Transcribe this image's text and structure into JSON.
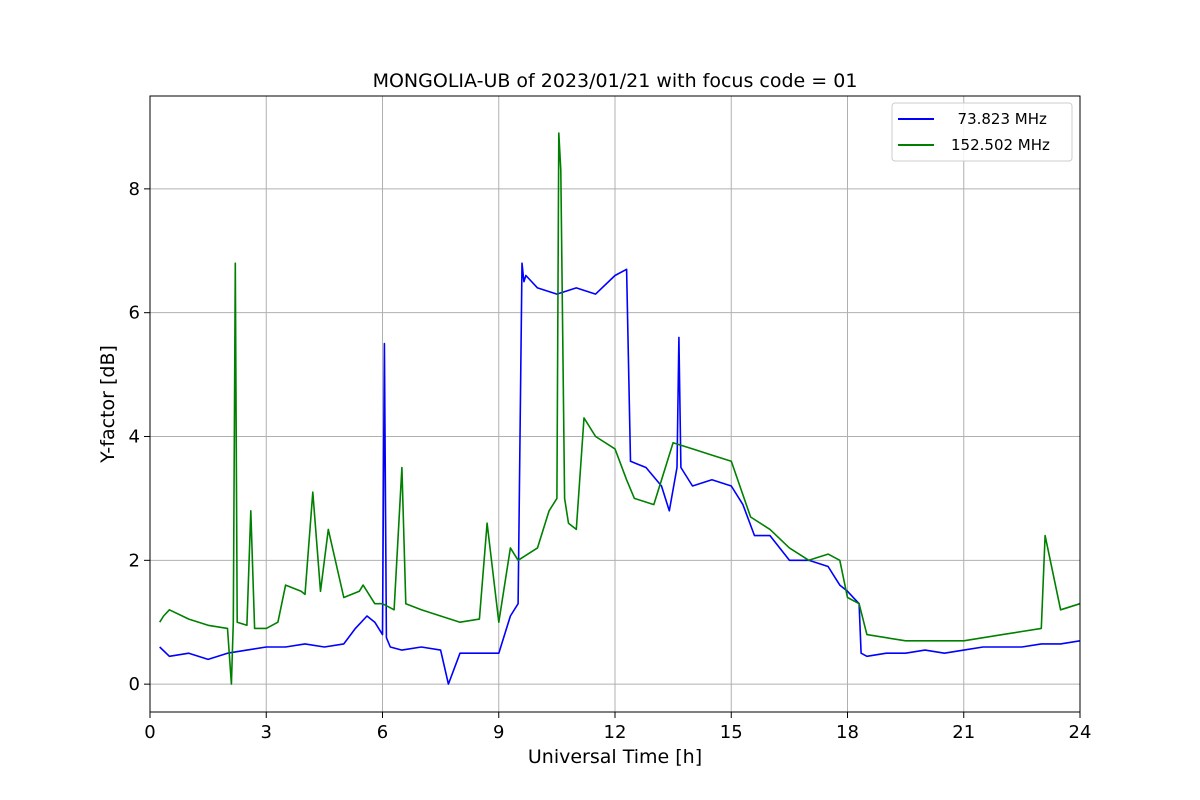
{
  "chart_data": {
    "type": "line",
    "title": "MONGOLIA-UB of 2023/01/21 with focus code = 01",
    "xlabel": "Universal Time [h]",
    "ylabel": "Y-factor [dB]",
    "xlim": [
      0,
      24
    ],
    "ylim": [
      -0.45,
      9.5
    ],
    "xticks": [
      0,
      3,
      6,
      9,
      12,
      15,
      18,
      21,
      24
    ],
    "xtick_labels": [
      "0",
      "3",
      "6",
      "9",
      "12",
      "15",
      "18",
      "21",
      "24"
    ],
    "yticks": [
      0,
      2,
      4,
      6,
      8
    ],
    "ytick_labels": [
      "0",
      "2",
      "4",
      "6",
      "8"
    ],
    "grid": true,
    "legend_position": "top-right",
    "series": [
      {
        "name": "  73.823 MHz",
        "color": "#0000ff",
        "x": [
          0.25,
          0.5,
          1,
          1.5,
          2,
          2.5,
          3,
          3.5,
          4,
          4.5,
          5,
          5.3,
          5.6,
          5.8,
          6.0,
          6.05,
          6.1,
          6.2,
          6.5,
          7,
          7.5,
          7.7,
          8,
          8.5,
          9,
          9.3,
          9.5,
          9.6,
          9.65,
          9.7,
          10,
          10.5,
          11,
          11.5,
          12,
          12.3,
          12.4,
          12.8,
          13.2,
          13.4,
          13.6,
          13.65,
          13.7,
          14,
          14.5,
          15,
          15.3,
          15.6,
          16,
          16.5,
          17,
          17.5,
          17.7,
          17.8,
          18,
          18.3,
          18.35,
          18.5,
          19,
          19.5,
          20,
          20.5,
          21,
          21.5,
          22,
          22.5,
          23,
          23.5,
          24
        ],
        "y": [
          0.6,
          0.45,
          0.5,
          0.4,
          0.5,
          0.55,
          0.6,
          0.6,
          0.65,
          0.6,
          0.65,
          0.9,
          1.1,
          1.0,
          0.8,
          5.5,
          0.75,
          0.6,
          0.55,
          0.6,
          0.55,
          0.0,
          0.5,
          0.5,
          0.5,
          1.1,
          1.3,
          6.8,
          6.5,
          6.6,
          6.4,
          6.3,
          6.4,
          6.3,
          6.6,
          6.7,
          3.6,
          3.5,
          3.2,
          2.8,
          3.5,
          5.6,
          3.5,
          3.2,
          3.3,
          3.2,
          2.9,
          2.4,
          2.4,
          2.0,
          2.0,
          1.9,
          1.7,
          1.6,
          1.5,
          1.3,
          0.5,
          0.45,
          0.5,
          0.5,
          0.55,
          0.5,
          0.55,
          0.6,
          0.6,
          0.6,
          0.65,
          0.65,
          0.7
        ]
      },
      {
        "name": "152.502 MHz",
        "color": "#008000",
        "x": [
          0.25,
          0.35,
          0.5,
          1,
          1.5,
          2,
          2.1,
          2.15,
          2.2,
          2.25,
          2.5,
          2.6,
          2.7,
          3,
          3.3,
          3.5,
          3.9,
          4,
          4.2,
          4.4,
          4.6,
          5,
          5.4,
          5.5,
          5.8,
          6,
          6.3,
          6.5,
          6.6,
          7,
          7.5,
          8,
          8.5,
          8.7,
          9,
          9.3,
          9.5,
          10,
          10.3,
          10.5,
          10.55,
          10.6,
          10.7,
          10.8,
          11,
          11.2,
          11.5,
          12,
          12.3,
          12.5,
          13,
          13.3,
          13.5,
          14,
          14.5,
          15,
          15.5,
          16,
          16.5,
          17,
          17.5,
          17.8,
          18,
          18.3,
          18.5,
          19,
          19.5,
          20,
          20.5,
          21,
          21.5,
          22,
          22.5,
          23,
          23.1,
          23.5,
          24
        ],
        "y": [
          1.0,
          1.1,
          1.2,
          1.05,
          0.95,
          0.9,
          0.0,
          1.0,
          6.8,
          1.0,
          0.95,
          2.8,
          0.9,
          0.9,
          1.0,
          1.6,
          1.5,
          1.45,
          3.1,
          1.5,
          2.5,
          1.4,
          1.5,
          1.6,
          1.3,
          1.3,
          1.2,
          3.5,
          1.3,
          1.2,
          1.1,
          1.0,
          1.05,
          2.6,
          1.0,
          2.2,
          2.0,
          2.2,
          2.8,
          3.0,
          8.9,
          8.3,
          3.0,
          2.6,
          2.5,
          4.3,
          4.0,
          3.8,
          3.3,
          3.0,
          2.9,
          3.5,
          3.9,
          3.8,
          3.7,
          3.6,
          2.7,
          2.5,
          2.2,
          2.0,
          2.1,
          2.0,
          1.4,
          1.3,
          0.8,
          0.75,
          0.7,
          0.7,
          0.7,
          0.7,
          0.75,
          0.8,
          0.85,
          0.9,
          2.4,
          1.2,
          1.3
        ]
      }
    ]
  }
}
